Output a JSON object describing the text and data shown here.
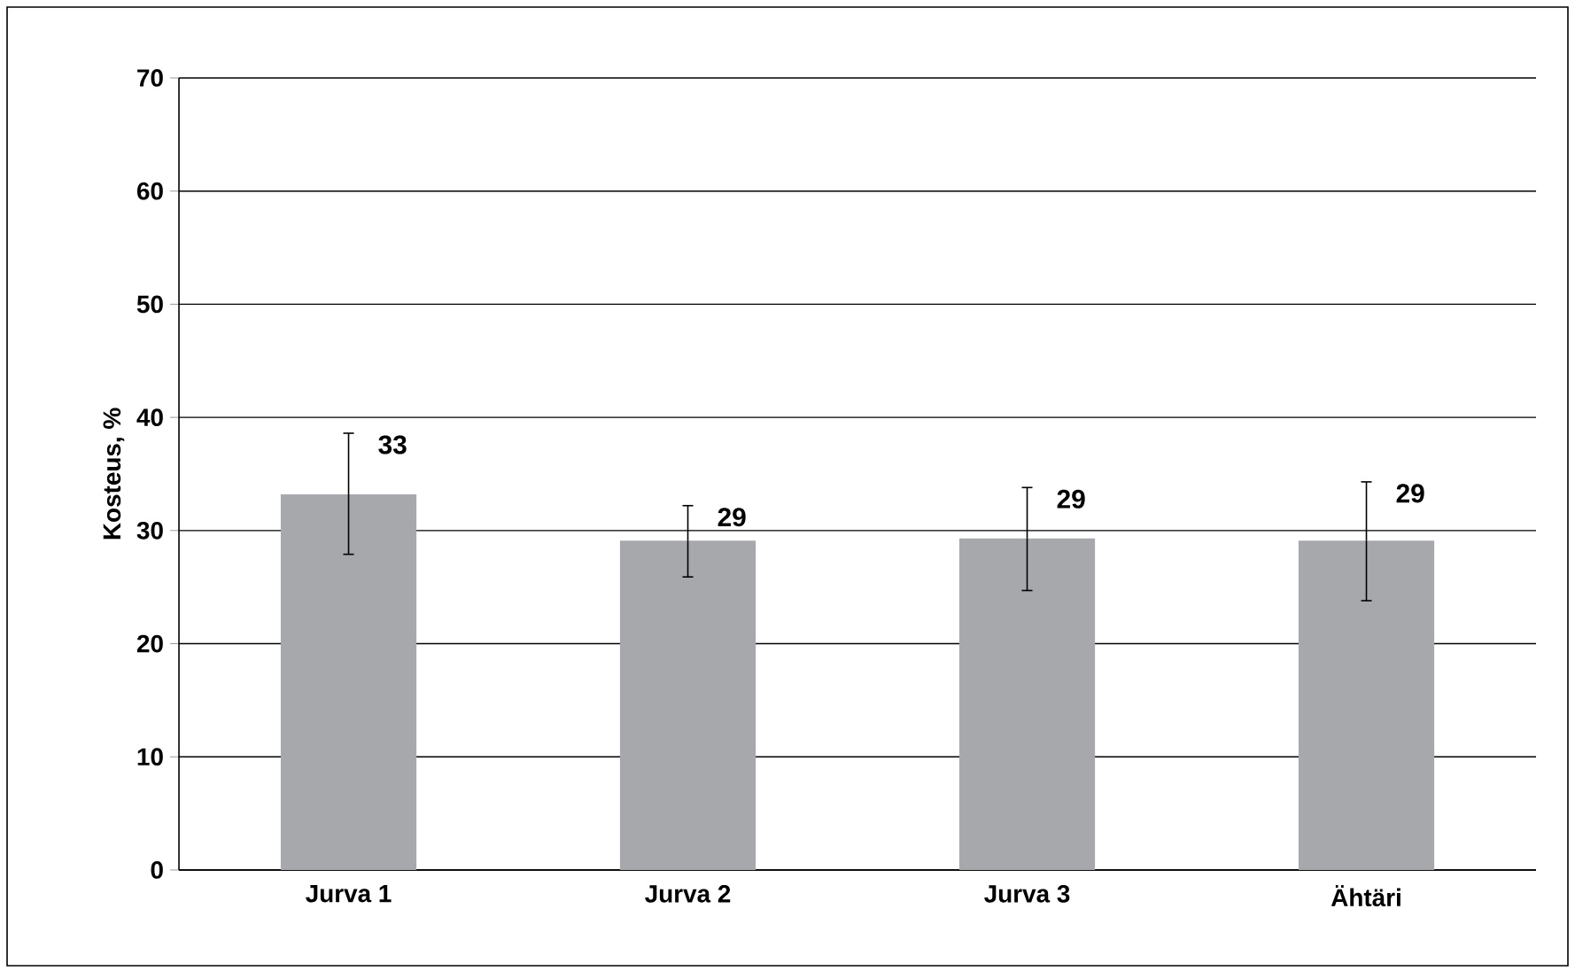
{
  "chart_data": {
    "type": "bar",
    "ylabel": "Kosteus, %",
    "categories": [
      "Jurva 1",
      "Jurva 2",
      "Jurva 3",
      "Ähtäri"
    ],
    "values": [
      33.2,
      29.1,
      29.3,
      29.1
    ],
    "value_labels": [
      "33",
      "29",
      "29",
      "29"
    ],
    "errors": [
      [
        27.9,
        38.6
      ],
      [
        25.9,
        32.2
      ],
      [
        24.7,
        33.8
      ],
      [
        23.8,
        34.3
      ]
    ],
    "color": "#a7a8ab",
    "ylim": [
      0,
      70
    ],
    "yticks": [
      0,
      10,
      20,
      30,
      40,
      50,
      60,
      70
    ],
    "grid": "y"
  }
}
